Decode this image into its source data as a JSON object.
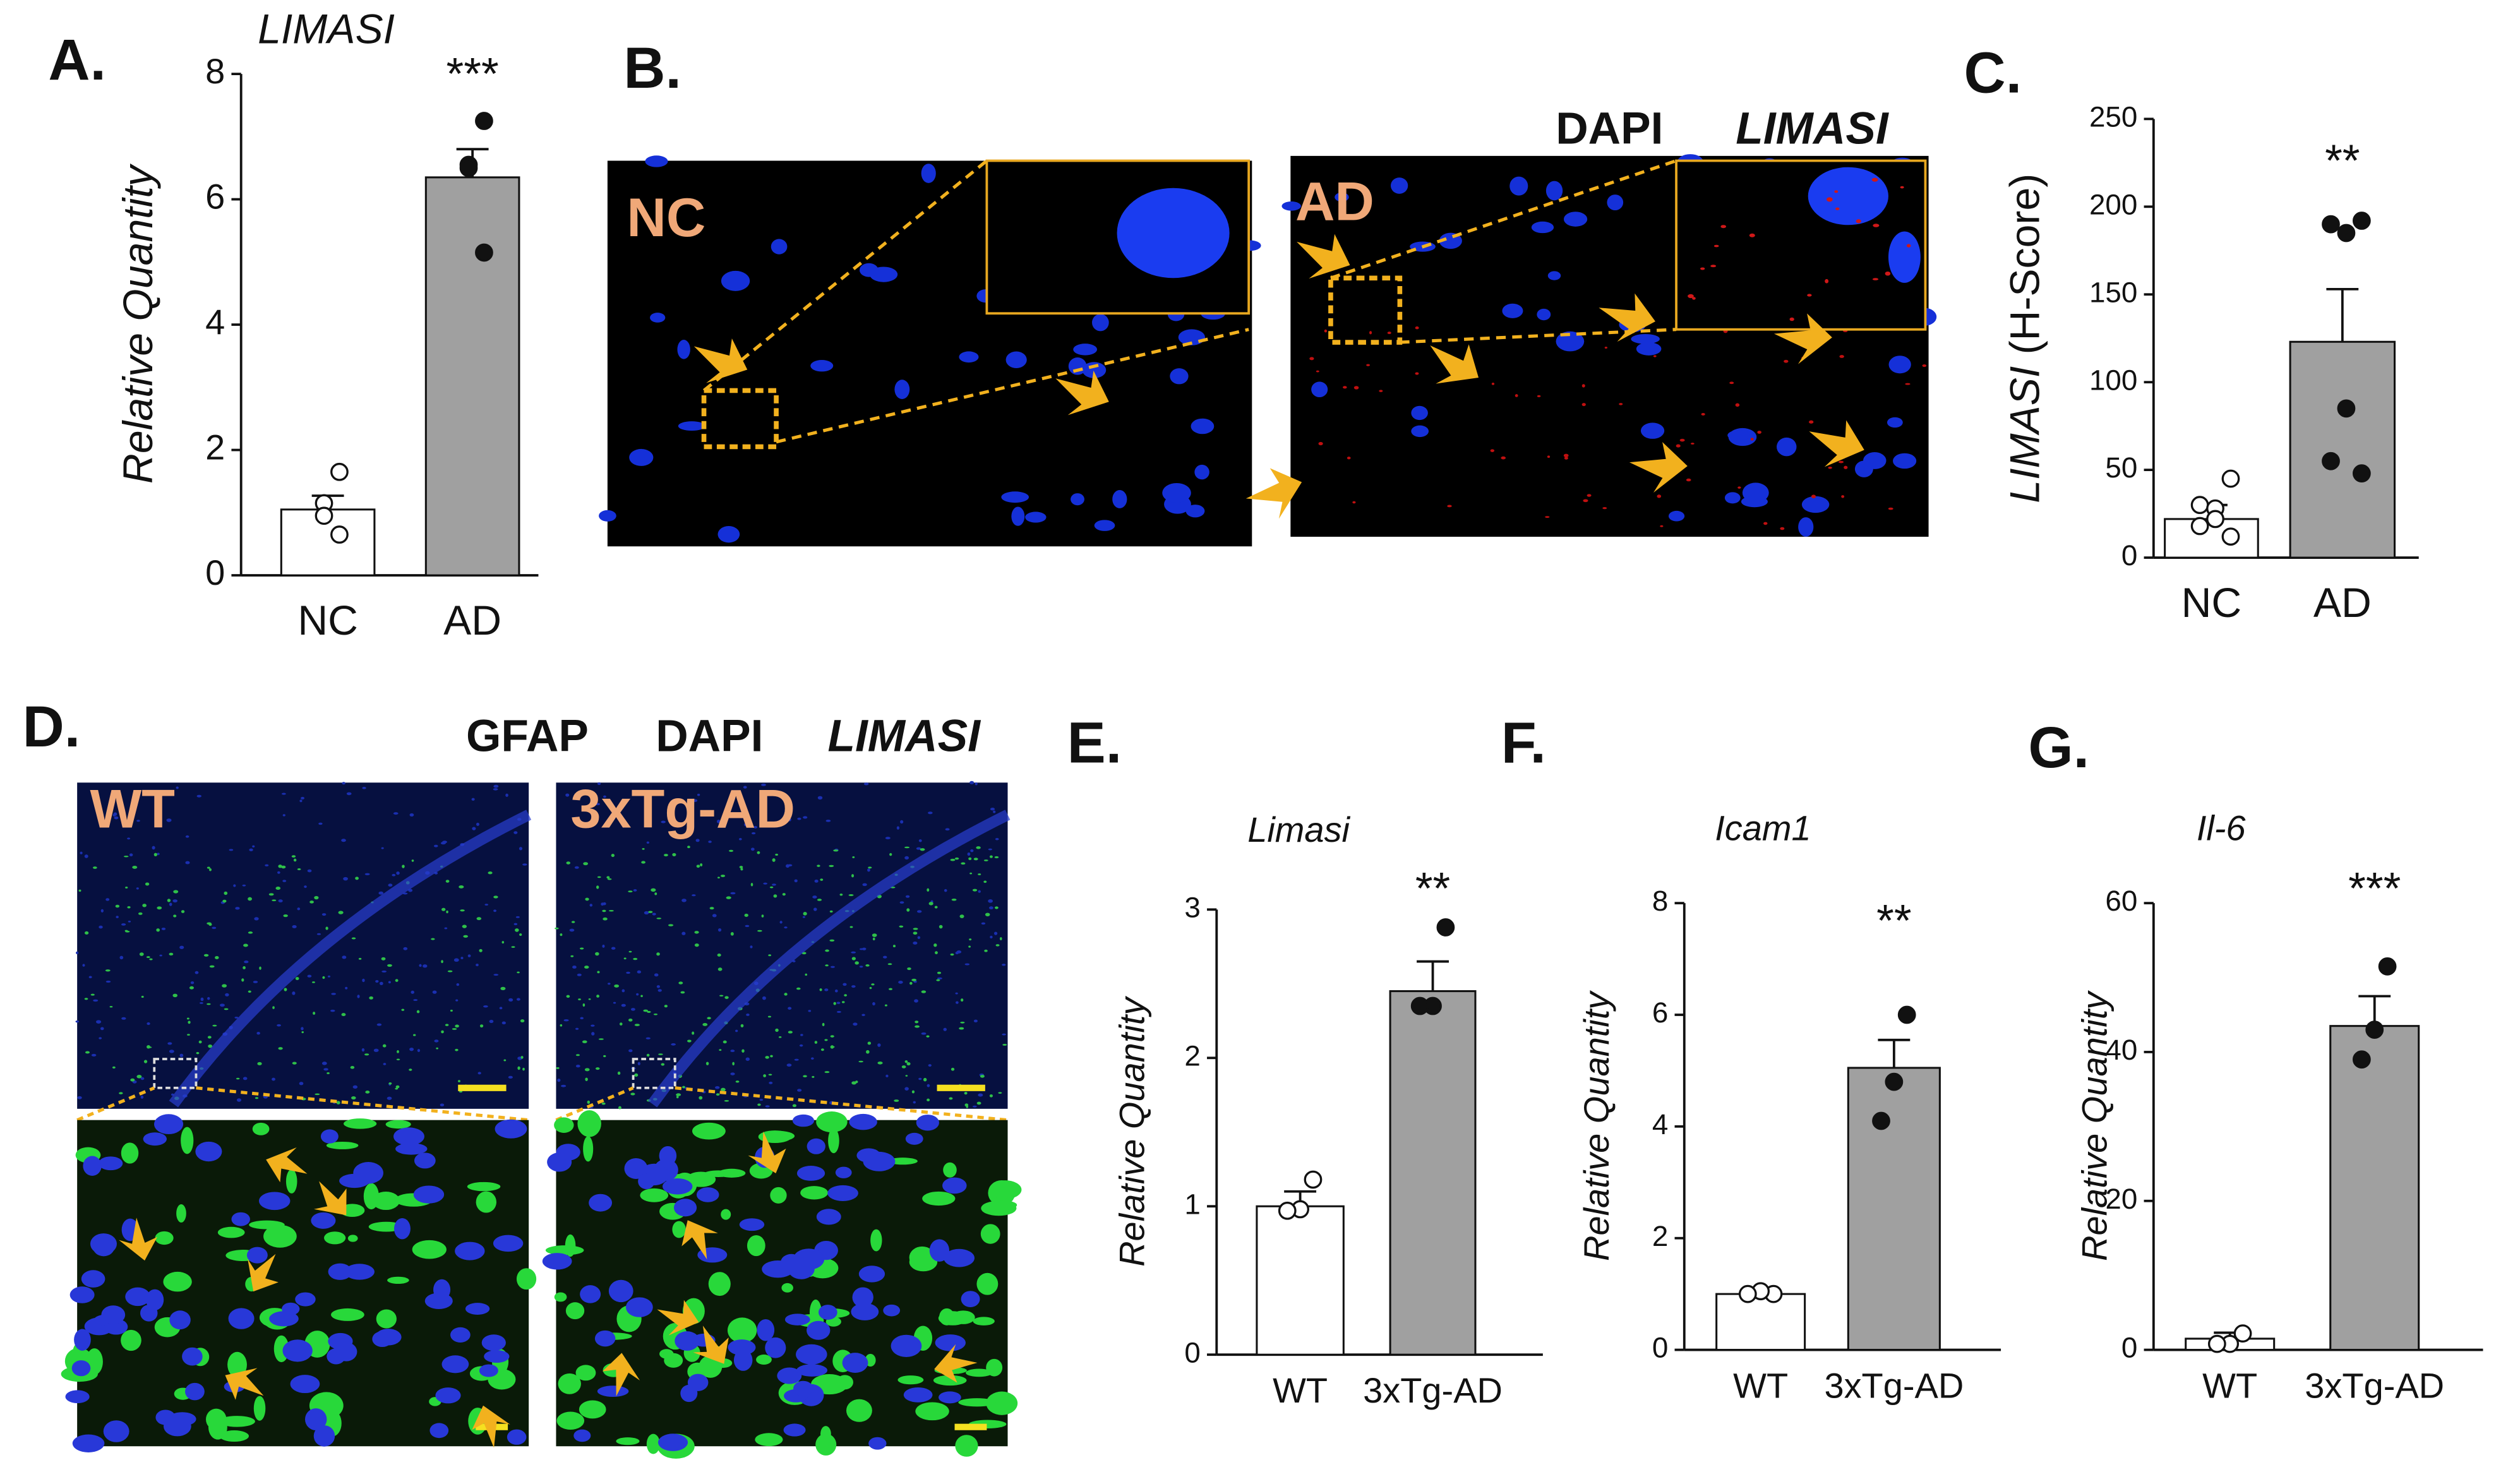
{
  "panel_labels": [
    "A.",
    "B.",
    "C.",
    "D.",
    "E.",
    "F.",
    "G."
  ],
  "images": {
    "b_stains": [
      {
        "text": "DAPI",
        "color": "#1a35e0"
      },
      {
        "text": "LIMASI",
        "color": "#e01818"
      }
    ],
    "b_groups": [
      "NC",
      "AD"
    ],
    "d_stains": [
      {
        "text": "GFAP",
        "color": "#22b04a"
      },
      {
        "text": "DAPI",
        "color": "#1a35e0"
      },
      {
        "text": "LIMASI",
        "color": "#e01818"
      }
    ],
    "d_groups": [
      "WT",
      "3xTg-AD"
    ]
  },
  "chart_data": [
    {
      "type": "bar",
      "title": "LIMASI",
      "ylabel": "Relative Quantity",
      "categories": [
        "NC",
        "AD"
      ],
      "values": [
        1.05,
        6.35
      ],
      "errors": [
        0.22,
        0.45
      ],
      "points": [
        [
          1.65,
          1.15,
          0.95,
          0.65
        ],
        [
          7.25,
          6.55,
          6.5,
          5.15
        ]
      ],
      "significance": "***",
      "colors": [
        "#ffffff",
        "#a0a0a0"
      ],
      "ylim": [
        0,
        8
      ],
      "yticks": [
        0,
        2,
        4,
        6,
        8
      ]
    },
    {
      "type": "bar",
      "ylabel_prefix": "LIMASI",
      "ylabel": "(H-Score)",
      "categories": [
        "NC",
        "AD"
      ],
      "values": [
        22,
        123
      ],
      "errors": [
        8,
        30
      ],
      "points": [
        [
          45,
          30,
          28,
          22,
          18,
          12
        ],
        [
          192,
          190,
          185,
          85,
          55,
          48
        ]
      ],
      "significance": "**",
      "colors": [
        "#ffffff",
        "#a0a0a0"
      ],
      "ylim": [
        0,
        250
      ],
      "yticks": [
        0,
        50,
        100,
        150,
        200,
        250
      ]
    },
    {
      "type": "bar",
      "title": "Limasi",
      "ylabel": "Relative Quantity",
      "categories": [
        "WT",
        "3xTg-AD"
      ],
      "values": [
        1.0,
        2.45
      ],
      "errors": [
        0.1,
        0.2
      ],
      "points": [
        [
          1.18,
          0.98,
          0.97
        ],
        [
          2.88,
          2.35,
          2.35
        ]
      ],
      "significance": "**",
      "colors": [
        "#ffffff",
        "#a0a0a0"
      ],
      "ylim": [
        0,
        3
      ],
      "yticks": [
        0,
        1,
        2,
        3
      ]
    },
    {
      "type": "bar",
      "title": "Icam1",
      "ylabel": "Relative Quantity",
      "categories": [
        "WT",
        "3xTg-AD"
      ],
      "values": [
        1.0,
        5.05
      ],
      "errors": [
        0.05,
        0.5
      ],
      "points": [
        [
          1.0,
          1.05,
          1.0
        ],
        [
          6.0,
          4.8,
          4.1
        ]
      ],
      "significance": "**",
      "colors": [
        "#ffffff",
        "#a0a0a0"
      ],
      "ylim": [
        0,
        8
      ],
      "yticks": [
        0,
        2,
        4,
        6,
        8
      ]
    },
    {
      "type": "bar",
      "title": "Il-6",
      "ylabel": "Relative Quantity",
      "categories": [
        "WT",
        "3xTg-AD"
      ],
      "values": [
        1.5,
        43.5
      ],
      "errors": [
        0.8,
        4
      ],
      "points": [
        [
          2.2,
          0.8,
          0.8
        ],
        [
          51.5,
          43,
          39
        ]
      ],
      "significance": "***",
      "colors": [
        "#ffffff",
        "#a0a0a0"
      ],
      "ylim": [
        0,
        60
      ],
      "yticks": [
        0,
        20,
        40,
        60
      ]
    }
  ]
}
